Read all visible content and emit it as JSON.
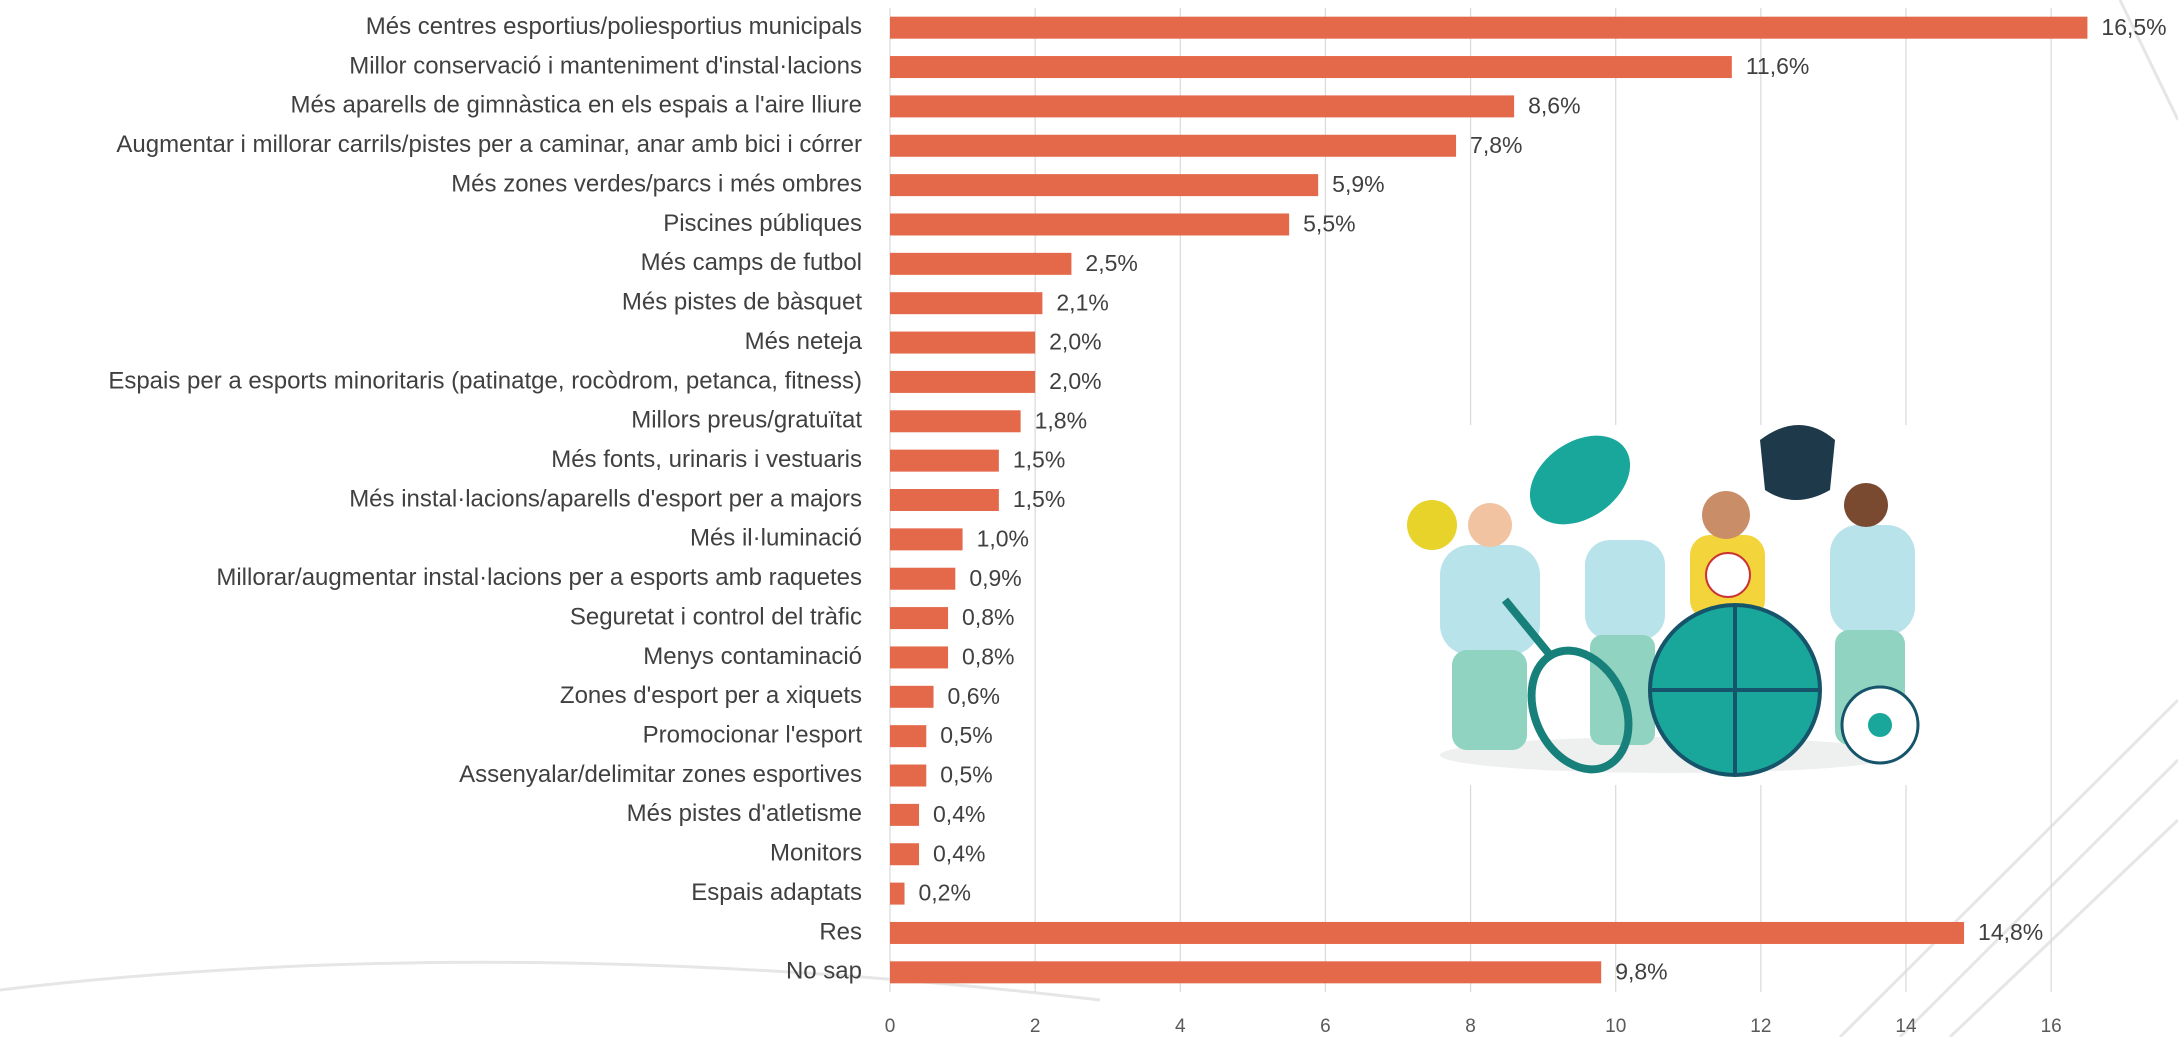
{
  "chart_data": {
    "type": "bar",
    "orientation": "horizontal",
    "categories": [
      "Més centres esportius/poliesportius municipals",
      "Millor conservació i manteniment d'instal·lacions",
      "Més aparells de gimnàstica en els espais a l'aire lliure",
      "Augmentar i millorar carrils/pistes per a caminar, anar amb bici i córrer",
      "Més zones verdes/parcs i més ombres",
      "Piscines públiques",
      "Més camps de futbol",
      "Més pistes de bàsquet",
      "Més neteja",
      "Espais per a esports minoritaris (patinatge, rocòdrom, petanca, fitness)",
      "Millors preus/gratuïtat",
      "Més fonts, urinaris i vestuaris",
      "Més instal·lacions/aparells d'esport per a majors",
      "Més il·luminació",
      "Millorar/augmentar instal·lacions per a esports amb raquetes",
      "Seguretat i control del tràfic",
      "Menys contaminació",
      "Zones d'esport per a xiquets",
      "Promocionar l'esport",
      "Assenyalar/delimitar zones esportives",
      "Més pistes d'atletisme",
      "Monitors",
      "Espais adaptats",
      "Res",
      "No sap"
    ],
    "values": [
      16.5,
      11.6,
      8.6,
      7.8,
      5.9,
      5.5,
      2.5,
      2.1,
      2.0,
      2.0,
      1.8,
      1.5,
      1.5,
      1.0,
      0.9,
      0.8,
      0.8,
      0.6,
      0.5,
      0.5,
      0.4,
      0.4,
      0.2,
      14.8,
      9.8
    ],
    "value_labels": [
      "16,5%",
      "11,6%",
      "8,6%",
      "7,8%",
      "5,9%",
      "5,5%",
      "2,5%",
      "2,1%",
      "2,0%",
      "2,0%",
      "1,8%",
      "1,5%",
      "1,5%",
      "1,0%",
      "0,9%",
      "0,8%",
      "0,8%",
      "0,6%",
      "0,5%",
      "0,5%",
      "0,4%",
      "0,4%",
      "0,2%",
      "14,8%",
      "9,8%"
    ],
    "color": "#e4694a",
    "xlim": [
      0,
      17.5
    ],
    "xticks": [
      0,
      2,
      4,
      6,
      8,
      10,
      12,
      14,
      16
    ],
    "grid": true
  }
}
